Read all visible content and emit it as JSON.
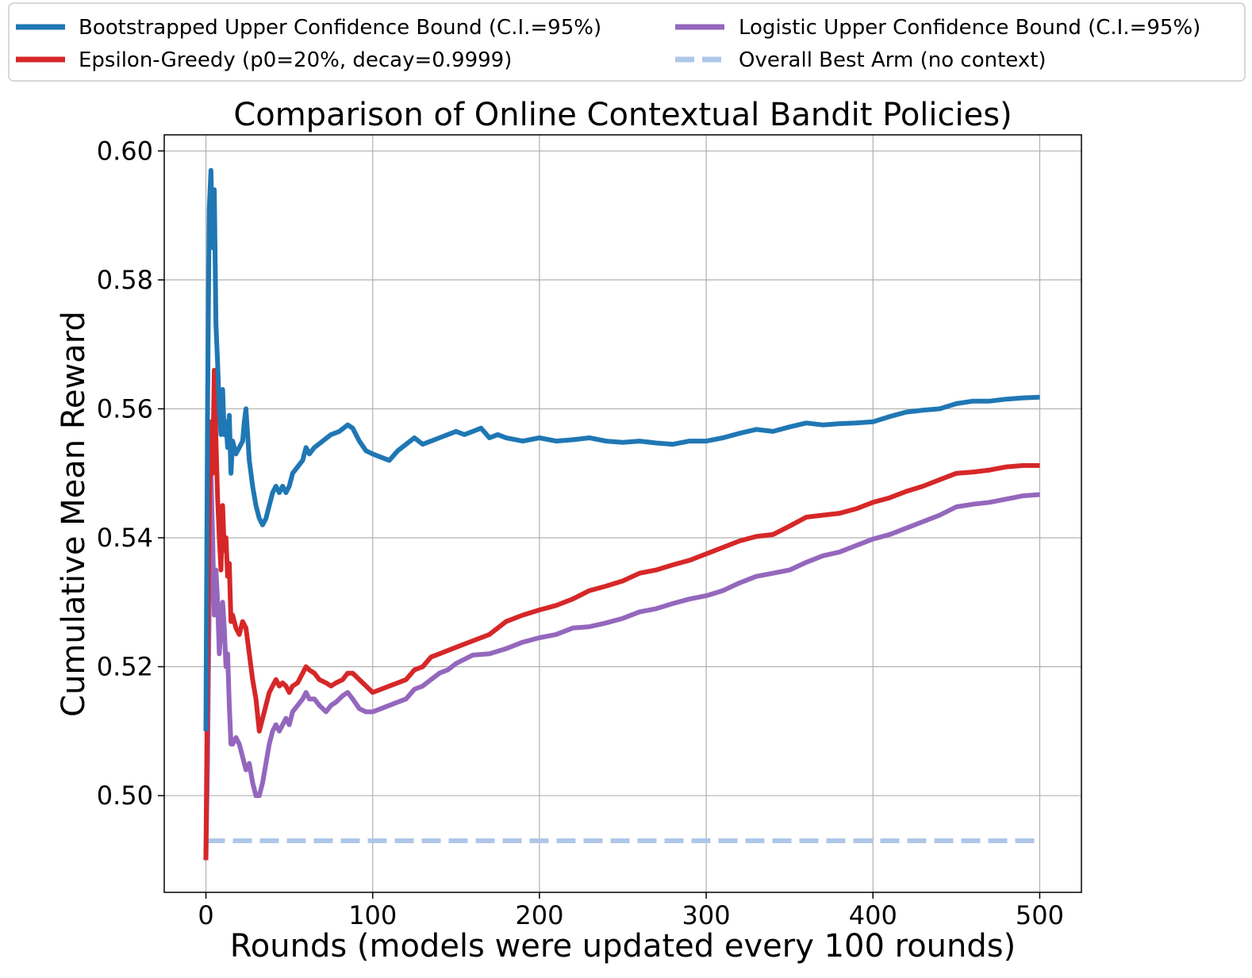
{
  "chart_data": {
    "type": "line",
    "title": "Comparison of Online Contextual Bandit Policies)",
    "xlabel": "Rounds (models were updated every 100 rounds)",
    "ylabel": "Cumulative Mean Reward",
    "xlim": [
      -25,
      525
    ],
    "ylim": [
      0.485,
      0.6025
    ],
    "xticks": [
      "0",
      "100",
      "200",
      "300",
      "400",
      "500"
    ],
    "yticks": [
      "0.50",
      "0.52",
      "0.54",
      "0.56",
      "0.58",
      "0.60"
    ],
    "grid": true,
    "legend": {
      "placement": "top, outside plot, two columns",
      "entries": [
        "Bootstrapped Upper Confidence Bound (C.I.=95%)",
        "Epsilon-Greedy (p0=20%, decay=0.9999)",
        "Logistic Upper Confidence Bound (C.I.=95%)",
        "Overall Best Arm (no context)"
      ]
    },
    "series": [
      {
        "name": "Bootstrapped Upper Confidence Bound (C.I.=95%)",
        "color": "#1f77b4",
        "style": "solid",
        "x": [
          0,
          1,
          2,
          3,
          4,
          5,
          6,
          7,
          8,
          9,
          10,
          11,
          12,
          13,
          14,
          15,
          16,
          18,
          20,
          22,
          23,
          24,
          25,
          26,
          28,
          30,
          32,
          34,
          36,
          38,
          40,
          42,
          44,
          46,
          48,
          50,
          52,
          55,
          58,
          60,
          62,
          65,
          70,
          75,
          80,
          85,
          88,
          92,
          96,
          100,
          105,
          110,
          115,
          120,
          125,
          130,
          135,
          140,
          145,
          150,
          155,
          160,
          165,
          170,
          175,
          180,
          190,
          200,
          210,
          220,
          230,
          240,
          250,
          260,
          270,
          280,
          290,
          300,
          310,
          320,
          330,
          340,
          350,
          360,
          370,
          380,
          390,
          400,
          410,
          420,
          430,
          440,
          450,
          460,
          470,
          480,
          490,
          500
        ],
        "y": [
          0.51,
          0.56,
          0.591,
          0.597,
          0.585,
          0.594,
          0.573,
          0.567,
          0.56,
          0.556,
          0.563,
          0.556,
          0.558,
          0.554,
          0.559,
          0.55,
          0.555,
          0.553,
          0.554,
          0.555,
          0.558,
          0.56,
          0.556,
          0.552,
          0.548,
          0.545,
          0.543,
          0.542,
          0.543,
          0.545,
          0.547,
          0.548,
          0.547,
          0.548,
          0.547,
          0.548,
          0.55,
          0.551,
          0.552,
          0.554,
          0.553,
          0.554,
          0.555,
          0.556,
          0.5565,
          0.5575,
          0.557,
          0.555,
          0.5535,
          0.553,
          0.5525,
          0.552,
          0.5535,
          0.5545,
          0.5555,
          0.5545,
          0.555,
          0.5555,
          0.556,
          0.5565,
          0.556,
          0.5565,
          0.557,
          0.5555,
          0.556,
          0.5555,
          0.555,
          0.5555,
          0.555,
          0.5552,
          0.5555,
          0.555,
          0.5548,
          0.555,
          0.5547,
          0.5545,
          0.555,
          0.555,
          0.5555,
          0.5562,
          0.5568,
          0.5565,
          0.5572,
          0.5578,
          0.5575,
          0.5577,
          0.5578,
          0.558,
          0.5588,
          0.5595,
          0.5598,
          0.56,
          0.5608,
          0.5612,
          0.5612,
          0.5615,
          0.5617,
          0.5618
        ]
      },
      {
        "name": "Epsilon-Greedy (p0=20%, decay=0.9999)",
        "color": "#d62728",
        "style": "solid",
        "x": [
          0,
          1,
          2,
          3,
          4,
          5,
          6,
          7,
          8,
          9,
          10,
          11,
          12,
          13,
          14,
          15,
          16,
          18,
          20,
          22,
          24,
          26,
          28,
          30,
          32,
          34,
          36,
          38,
          40,
          42,
          44,
          46,
          48,
          50,
          52,
          55,
          58,
          60,
          62,
          65,
          68,
          72,
          75,
          78,
          82,
          85,
          88,
          92,
          96,
          100,
          105,
          110,
          115,
          120,
          125,
          130,
          135,
          140,
          145,
          150,
          160,
          170,
          180,
          190,
          200,
          210,
          220,
          230,
          240,
          250,
          260,
          270,
          280,
          290,
          300,
          310,
          320,
          330,
          340,
          350,
          360,
          370,
          380,
          390,
          400,
          410,
          420,
          430,
          440,
          450,
          460,
          470,
          480,
          490,
          500
        ],
        "y": [
          0.49,
          0.52,
          0.545,
          0.558,
          0.55,
          0.566,
          0.555,
          0.546,
          0.54,
          0.535,
          0.545,
          0.538,
          0.54,
          0.534,
          0.536,
          0.527,
          0.528,
          0.526,
          0.525,
          0.527,
          0.526,
          0.522,
          0.518,
          0.515,
          0.51,
          0.512,
          0.514,
          0.516,
          0.517,
          0.518,
          0.517,
          0.5175,
          0.517,
          0.516,
          0.517,
          0.5175,
          0.519,
          0.52,
          0.5195,
          0.519,
          0.518,
          0.5175,
          0.517,
          0.5175,
          0.518,
          0.519,
          0.519,
          0.518,
          0.517,
          0.516,
          0.5165,
          0.517,
          0.5175,
          0.518,
          0.5195,
          0.52,
          0.5215,
          0.522,
          0.5225,
          0.523,
          0.524,
          0.525,
          0.527,
          0.528,
          0.5288,
          0.5295,
          0.5305,
          0.5318,
          0.5325,
          0.5333,
          0.5345,
          0.535,
          0.5358,
          0.5365,
          0.5375,
          0.5385,
          0.5395,
          0.5402,
          0.5405,
          0.5418,
          0.5432,
          0.5435,
          0.5438,
          0.5445,
          0.5455,
          0.5462,
          0.5472,
          0.548,
          0.549,
          0.55,
          0.5502,
          0.5505,
          0.551,
          0.5512,
          0.5512
        ]
      },
      {
        "name": "Logistic Upper Confidence Bound (C.I.=95%)",
        "color": "#9467bd",
        "style": "solid",
        "x": [
          0,
          1,
          2,
          3,
          4,
          5,
          6,
          7,
          8,
          9,
          10,
          11,
          12,
          13,
          14,
          15,
          16,
          18,
          20,
          22,
          24,
          26,
          28,
          30,
          32,
          34,
          36,
          38,
          40,
          42,
          44,
          46,
          48,
          50,
          52,
          55,
          58,
          60,
          62,
          65,
          68,
          72,
          75,
          78,
          82,
          85,
          88,
          92,
          96,
          100,
          105,
          110,
          115,
          120,
          125,
          130,
          135,
          140,
          145,
          150,
          160,
          170,
          180,
          190,
          200,
          210,
          220,
          230,
          240,
          250,
          260,
          270,
          280,
          290,
          300,
          310,
          320,
          330,
          340,
          350,
          360,
          370,
          380,
          390,
          400,
          410,
          420,
          430,
          440,
          450,
          460,
          470,
          480,
          490,
          500
        ],
        "y": [
          0.49,
          0.505,
          0.53,
          0.55,
          0.54,
          0.528,
          0.535,
          0.53,
          0.522,
          0.526,
          0.53,
          0.526,
          0.52,
          0.522,
          0.514,
          0.508,
          0.508,
          0.509,
          0.508,
          0.506,
          0.504,
          0.505,
          0.502,
          0.5,
          0.5,
          0.502,
          0.505,
          0.508,
          0.51,
          0.511,
          0.51,
          0.511,
          0.512,
          0.511,
          0.513,
          0.514,
          0.515,
          0.516,
          0.515,
          0.515,
          0.514,
          0.513,
          0.514,
          0.5145,
          0.5155,
          0.516,
          0.515,
          0.5135,
          0.513,
          0.513,
          0.5135,
          0.514,
          0.5145,
          0.515,
          0.5165,
          0.517,
          0.518,
          0.519,
          0.5195,
          0.5205,
          0.5218,
          0.522,
          0.5228,
          0.5238,
          0.5245,
          0.525,
          0.526,
          0.5262,
          0.5268,
          0.5275,
          0.5285,
          0.529,
          0.5298,
          0.5305,
          0.531,
          0.5318,
          0.533,
          0.534,
          0.5345,
          0.535,
          0.5362,
          0.5372,
          0.5378,
          0.5388,
          0.5398,
          0.5405,
          0.5415,
          0.5425,
          0.5435,
          0.5448,
          0.5452,
          0.5455,
          0.546,
          0.5465,
          0.5467
        ]
      },
      {
        "name": "Overall Best Arm (no context)",
        "color": "#aec7e8",
        "style": "dashed",
        "x": [
          0,
          500
        ],
        "y": [
          0.493,
          0.493
        ]
      }
    ]
  }
}
